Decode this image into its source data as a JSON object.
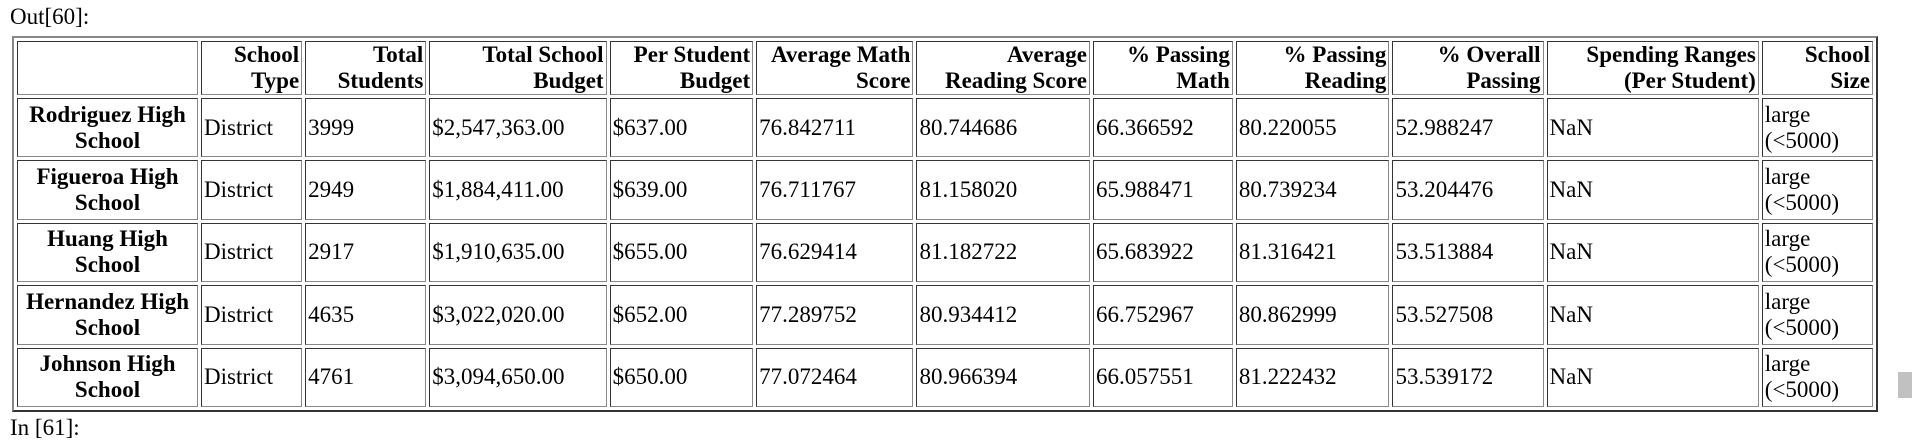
{
  "prompts": {
    "out": "Out[60]:",
    "in": "In [61]:"
  },
  "table": {
    "index_header": "",
    "columns": [
      "School Type",
      "Total Students",
      "Total School Budget",
      "Per Student Budget",
      "Average Math Score",
      "Average Reading Score",
      "% Passing Math",
      "% Passing Reading",
      "% Overall Passing",
      "Spending Ranges (Per Student)",
      "School Size"
    ],
    "rows": [
      {
        "name": "Rodriguez High School",
        "cells": [
          "District",
          "3999",
          "$2,547,363.00",
          "$637.00",
          "76.842711",
          "80.744686",
          "66.366592",
          "80.220055",
          "52.988247",
          "NaN",
          "large (<5000)"
        ]
      },
      {
        "name": "Figueroa High School",
        "cells": [
          "District",
          "2949",
          "$1,884,411.00",
          "$639.00",
          "76.711767",
          "81.158020",
          "65.988471",
          "80.739234",
          "53.204476",
          "NaN",
          "large (<5000)"
        ]
      },
      {
        "name": "Huang High School",
        "cells": [
          "District",
          "2917",
          "$1,910,635.00",
          "$655.00",
          "76.629414",
          "81.182722",
          "65.683922",
          "81.316421",
          "53.513884",
          "NaN",
          "large (<5000)"
        ]
      },
      {
        "name": "Hernandez High School",
        "cells": [
          "District",
          "4635",
          "$3,022,020.00",
          "$652.00",
          "77.289752",
          "80.934412",
          "66.752967",
          "80.862999",
          "53.527508",
          "NaN",
          "large (<5000)"
        ]
      },
      {
        "name": "Johnson High School",
        "cells": [
          "District",
          "4761",
          "$3,094,650.00",
          "$650.00",
          "77.072464",
          "80.966394",
          "66.057551",
          "81.222432",
          "53.539172",
          "NaN",
          "large (<5000)"
        ]
      }
    ]
  }
}
